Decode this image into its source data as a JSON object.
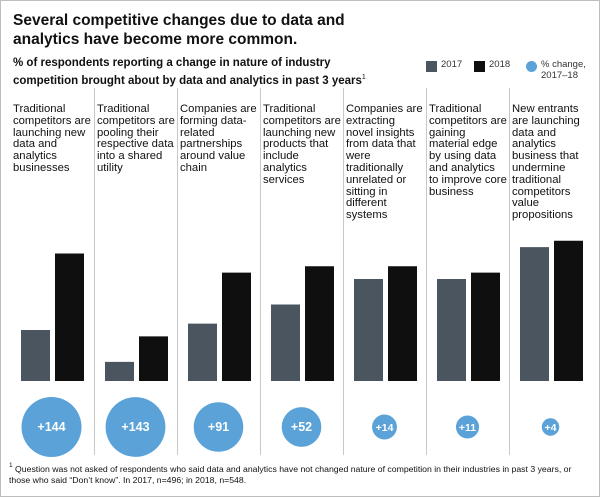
{
  "title": "Several competitive changes due to data and analytics have become more common.",
  "subtitle": "% of respondents reporting a change in nature of industry competition brought about by data and analytics in past 3 years",
  "subtitle_footnote_marker": "1",
  "legend": {
    "y2017": "2017",
    "y2018": "2018",
    "change_line1": "% change,",
    "change_line2": "2017–18"
  },
  "colors": {
    "y2017": "#4a5560",
    "y2018": "#0f0f0f",
    "bubble": "#5aa2d8",
    "divider": "#c8c8c8"
  },
  "footnote": {
    "marker": "1",
    "text": "Question was not asked of respondents who said data and analytics have not changed nature of competition in their industries in past 3 years, or those who said “Don’t know”. In 2017, n=496; in 2018, n=548."
  },
  "chart_data": {
    "type": "bar",
    "categories": [
      "Traditional competitors are launching new data and analytics businesses",
      "Traditional competitors are pooling their respective data into a shared utility",
      "Companies are forming data-related partnerships around value chain",
      "Traditional competitors are launching new products that include analytics services",
      "Companies are extracting novel insights from data that were traditionally unrelated or sitting in different systems",
      "Traditional competitors are gaining material edge by using data and analytics to improve core business",
      "New entrants are launching data and analytics business that undermine traditional competitors value propositions"
    ],
    "series": [
      {
        "name": "2017",
        "values": [
          8,
          3,
          9,
          12,
          16,
          16,
          21
        ]
      },
      {
        "name": "2018",
        "values": [
          20,
          7,
          17,
          18,
          18,
          17,
          22
        ]
      }
    ],
    "pct_change": [
      "+144",
      "+143",
      "+91",
      "+52",
      "+14",
      "+11",
      "+4"
    ],
    "ylim": [
      0,
      24
    ],
    "grid": false,
    "legend_position": "top-right"
  }
}
